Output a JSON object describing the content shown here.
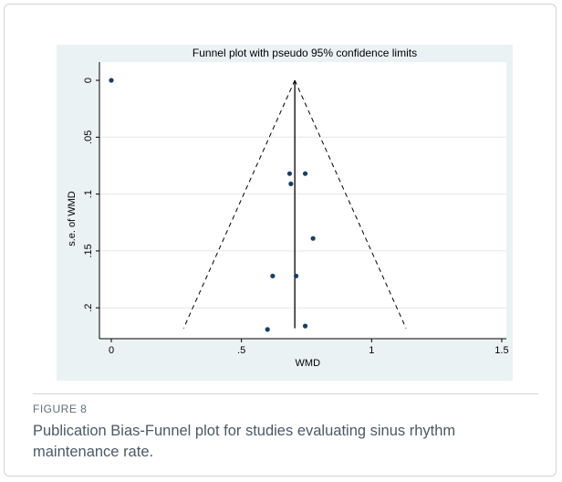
{
  "figure": {
    "label": "FIGURE 8",
    "caption": "Publication Bias-Funnel plot for studies evaluating sinus rhythm maintenance rate."
  },
  "colors": {
    "panel_background": "#eaf2f3",
    "plot_background": "#ffffff",
    "points": "#1b3d6b",
    "lines": "#000000",
    "caption_text": "#4a5a66",
    "label_text": "#5f6e78"
  },
  "chart_data": {
    "type": "scatter",
    "title": "Funnel plot with pseudo 95% confidence limits",
    "xlabel": "WMD",
    "ylabel": "s.e. of WMD",
    "xlim": [
      0,
      1.5
    ],
    "ylim": [
      0,
      0.22
    ],
    "y_reversed": true,
    "x_ticks": [
      0,
      0.5,
      1,
      1.5
    ],
    "x_tick_labels": [
      "0",
      ".5",
      "1",
      "1.5"
    ],
    "y_ticks": [
      0,
      0.05,
      0.1,
      0.15,
      0.2
    ],
    "y_tick_labels": [
      "0",
      ".05",
      ".1",
      ".15",
      ".2"
    ],
    "grid": "horizontal",
    "pooled_estimate": 0.705,
    "se_max": 0.218,
    "points": [
      {
        "x": 0.0,
        "y": 0.0
      },
      {
        "x": 0.685,
        "y": 0.082
      },
      {
        "x": 0.745,
        "y": 0.082
      },
      {
        "x": 0.69,
        "y": 0.091
      },
      {
        "x": 0.775,
        "y": 0.139
      },
      {
        "x": 0.62,
        "y": 0.172
      },
      {
        "x": 0.71,
        "y": 0.172
      },
      {
        "x": 0.745,
        "y": 0.216
      },
      {
        "x": 0.6,
        "y": 0.219
      }
    ]
  }
}
